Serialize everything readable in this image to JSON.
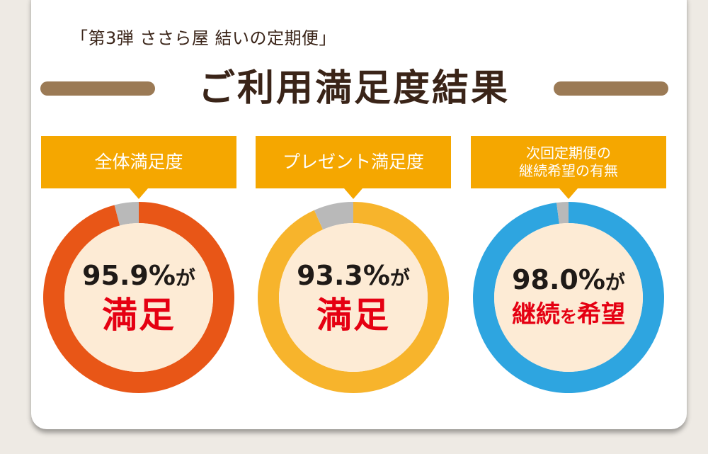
{
  "header": {
    "subtitle": "「第3弾 ささら屋 結いの定期便」",
    "title": "ご利用満足度結果"
  },
  "colors": {
    "label_bg": "#f5a700",
    "remainder": "#b9b9b9",
    "inner": "#fdebd5",
    "highlight_text": "#e50012"
  },
  "charts": [
    {
      "label": "全体満足度",
      "percent": 95.9,
      "percent_text": "95.9%",
      "suffix": "が",
      "verdict": [
        "満足"
      ],
      "color": "#e85617"
    },
    {
      "label": "プレゼント満足度",
      "percent": 93.3,
      "percent_text": "93.3%",
      "suffix": "が",
      "verdict": [
        "満足"
      ],
      "color": "#f7b42c"
    },
    {
      "label": "次回定期便の\n継続希望の有無",
      "percent": 98.0,
      "percent_text": "98.0%",
      "suffix": "が",
      "verdict": [
        "継続",
        "を",
        "希望"
      ],
      "color": "#2ea5e0"
    }
  ]
}
